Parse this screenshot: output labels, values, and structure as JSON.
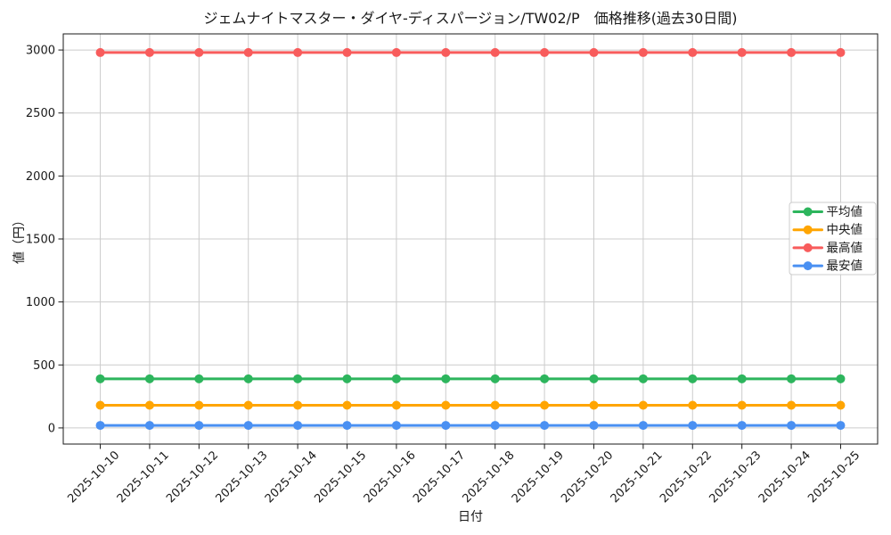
{
  "chart_data": {
    "type": "line",
    "title": "ジェムナイトマスター・ダイヤ-ディスパージョン/TW02/P　価格推移(過去30日間)",
    "xlabel": "日付",
    "ylabel": "値（円）",
    "x": [
      "2025-10-10",
      "2025-10-11",
      "2025-10-12",
      "2025-10-13",
      "2025-10-14",
      "2025-10-15",
      "2025-10-16",
      "2025-10-17",
      "2025-10-18",
      "2025-10-19",
      "2025-10-20",
      "2025-10-21",
      "2025-10-22",
      "2025-10-23",
      "2025-10-24",
      "2025-10-25"
    ],
    "series": [
      {
        "id": "average",
        "name": "平均値",
        "color": "#2db55d",
        "values": [
          390,
          390,
          390,
          390,
          390,
          390,
          390,
          390,
          390,
          390,
          390,
          390,
          390,
          390,
          390,
          390
        ]
      },
      {
        "id": "median",
        "name": "中央値",
        "color": "#ffa502",
        "values": [
          180,
          180,
          180,
          180,
          180,
          180,
          180,
          180,
          180,
          180,
          180,
          180,
          180,
          180,
          180,
          180
        ]
      },
      {
        "id": "max",
        "name": "最高値",
        "color": "#f85c5c",
        "values": [
          2980,
          2980,
          2980,
          2980,
          2980,
          2980,
          2980,
          2980,
          2980,
          2980,
          2980,
          2980,
          2980,
          2980,
          2980,
          2980
        ]
      },
      {
        "id": "min",
        "name": "最安値",
        "color": "#4a90f2",
        "values": [
          20,
          20,
          20,
          20,
          20,
          20,
          20,
          20,
          20,
          20,
          20,
          20,
          20,
          20,
          20,
          20
        ]
      }
    ],
    "yticks": [
      0,
      500,
      1000,
      1500,
      2000,
      2500,
      3000
    ],
    "ylim": [
      -128,
      3128
    ],
    "grid": true,
    "legend_position": "center right",
    "marker": "circle",
    "tick_color": "#1a1a1a",
    "grid_color": "#cccccc"
  }
}
